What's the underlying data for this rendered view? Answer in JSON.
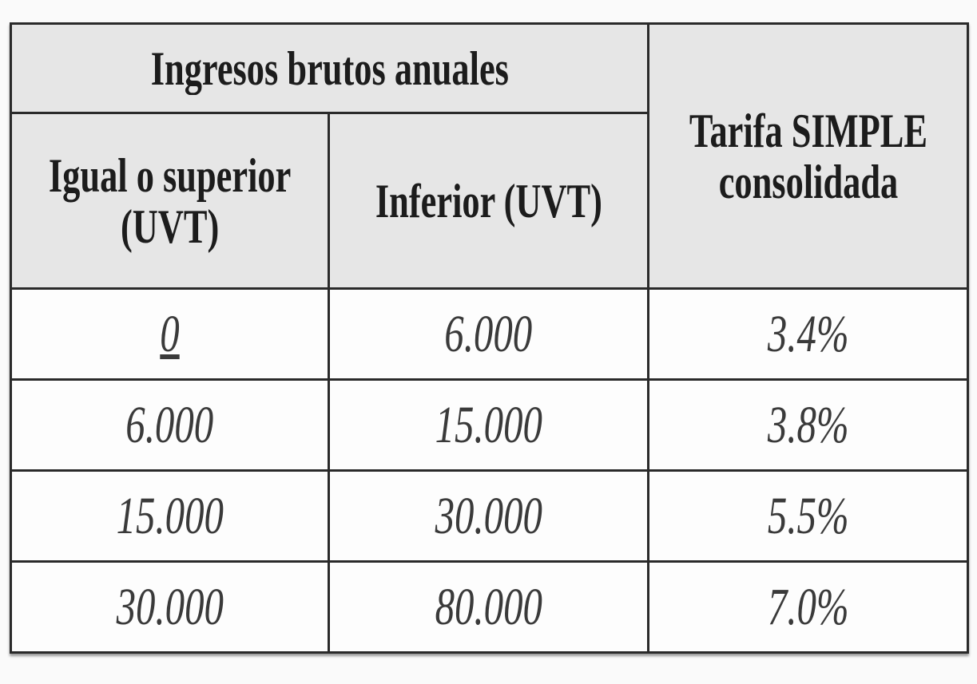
{
  "table": {
    "group_header": "Ingresos brutos anuales",
    "columns": [
      "Igual o superior (UVT)",
      "Inferior (UVT)",
      "Tarifa SIMPLE consolidada"
    ],
    "rows": [
      [
        "0",
        "6.000",
        "3.4%"
      ],
      [
        "6.000",
        "15.000",
        "3.8%"
      ],
      [
        "15.000",
        "30.000",
        "5.5%"
      ],
      [
        "30.000",
        "80.000",
        "7.0%"
      ]
    ]
  }
}
